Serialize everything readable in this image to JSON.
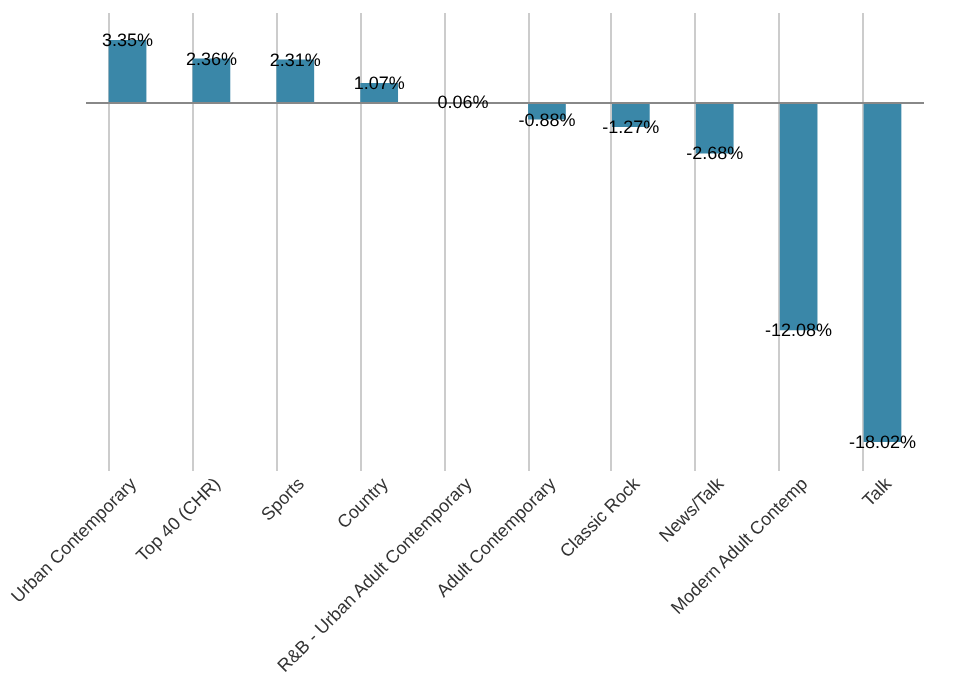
{
  "chart_data": {
    "type": "bar",
    "categories": [
      "Urban Contemporary",
      "Top 40 (CHR)",
      "Sports",
      "Country",
      "R&B - Urban Adult Contemporary",
      "Adult Contemporary",
      "Classic Rock",
      "News/Talk",
      "Modern Adult Contemp",
      "Talk"
    ],
    "values": [
      3.35,
      2.36,
      2.31,
      1.07,
      0.06,
      -0.88,
      -1.27,
      -2.68,
      -12.08,
      -18.02
    ],
    "value_labels": [
      "3.35%",
      "2.36%",
      "2.31%",
      "1.07%",
      "0.06%",
      "-0.88%",
      "-1.27%",
      "-2.68%",
      "-12.08%",
      "-18.02%"
    ],
    "color": "#3a87a8",
    "grid": "x"
  }
}
